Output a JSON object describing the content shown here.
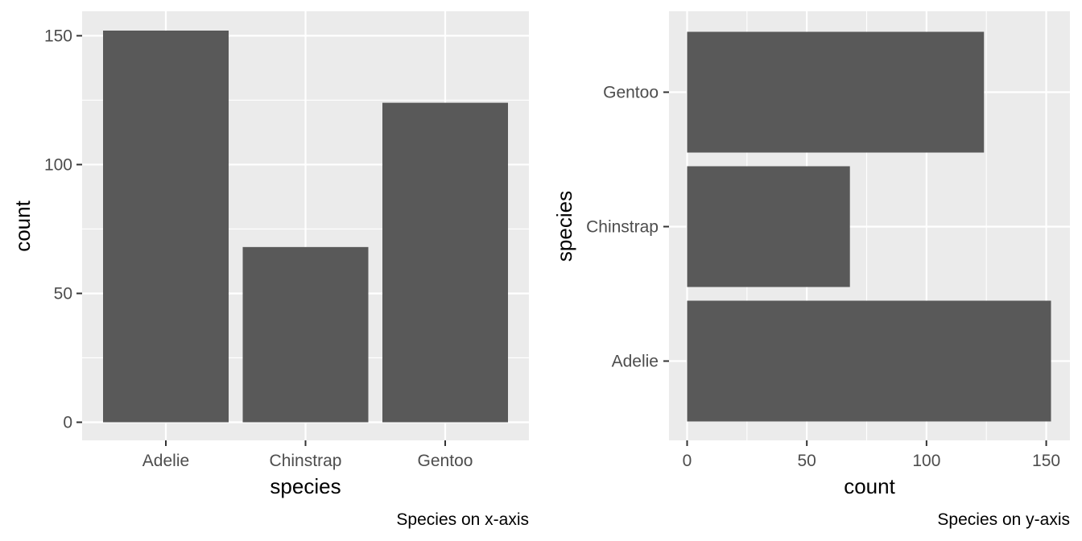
{
  "chart_data": [
    {
      "type": "bar",
      "orientation": "vertical",
      "categories": [
        "Adelie",
        "Chinstrap",
        "Gentoo"
      ],
      "values": [
        152,
        68,
        124
      ],
      "xlabel": "species",
      "ylabel": "count",
      "caption": "Species on x-axis",
      "ylim": [
        0,
        160
      ],
      "yticks": [
        0,
        50,
        100,
        150
      ],
      "ytick_labels": [
        "0",
        "50",
        "100",
        "150"
      ],
      "grid": true,
      "bar_color": "#595959",
      "panel_color": "#EBEBEB"
    },
    {
      "type": "bar",
      "orientation": "horizontal",
      "categories": [
        "Adelie",
        "Chinstrap",
        "Gentoo"
      ],
      "values": [
        152,
        68,
        124
      ],
      "xlabel": "count",
      "ylabel": "species",
      "caption": "Species on y-axis",
      "xlim": [
        0,
        160
      ],
      "xticks": [
        0,
        50,
        100,
        150
      ],
      "xtick_labels": [
        "0",
        "50",
        "100",
        "150"
      ],
      "grid": true,
      "bar_color": "#595959",
      "panel_color": "#EBEBEB"
    }
  ]
}
